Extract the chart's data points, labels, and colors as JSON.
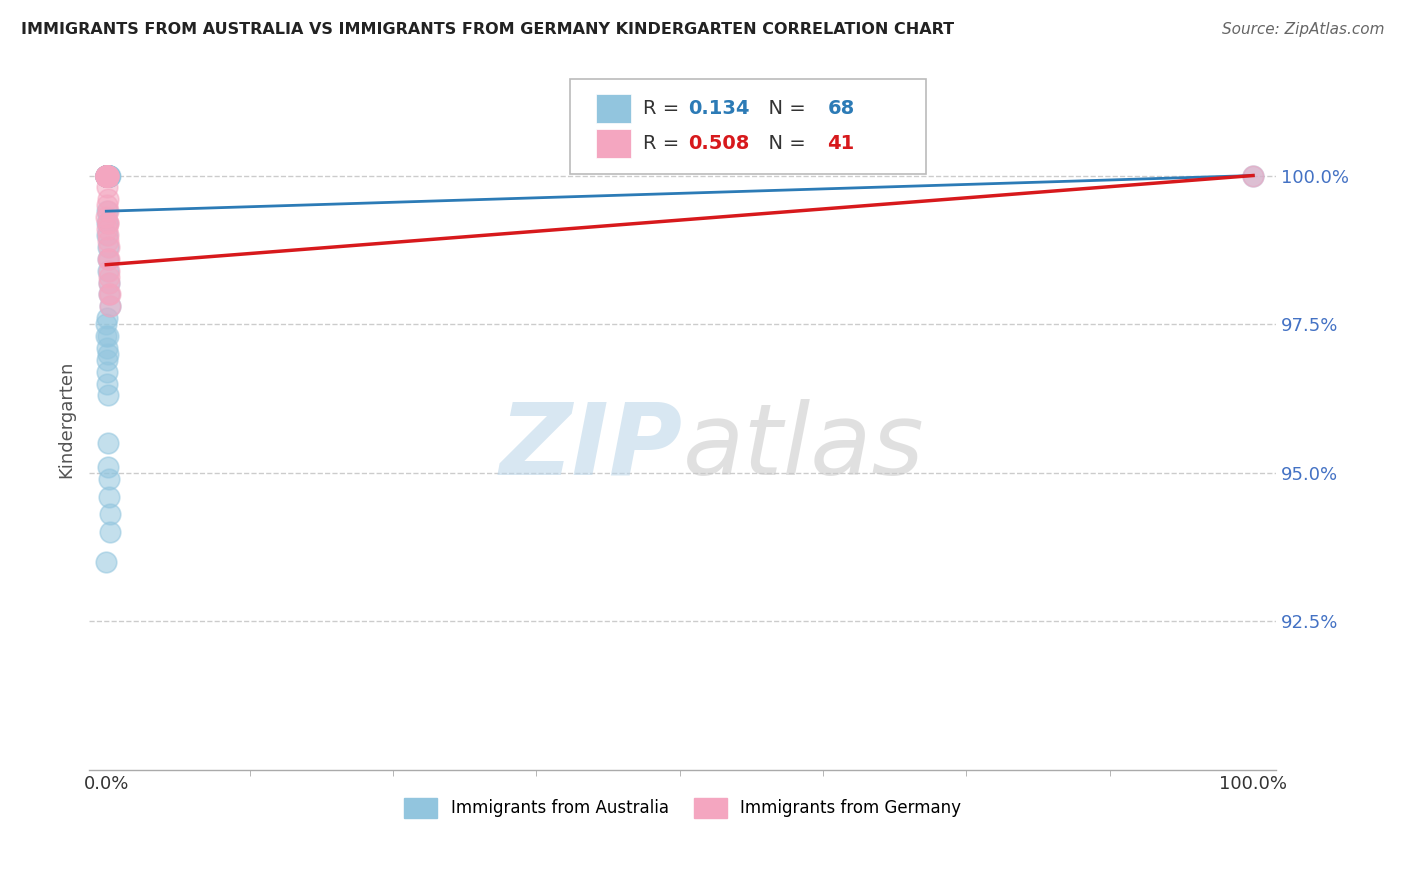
{
  "title": "IMMIGRANTS FROM AUSTRALIA VS IMMIGRANTS FROM GERMANY KINDERGARTEN CORRELATION CHART",
  "source": "Source: ZipAtlas.com",
  "ylabel": "Kindergarten",
  "watermark_zip": "ZIP",
  "watermark_atlas": "atlas",
  "xlim": [
    -1.5,
    102
  ],
  "ylim": [
    90.0,
    101.8
  ],
  "yticks": [
    92.5,
    95.0,
    97.5,
    100.0
  ],
  "ytick_labels": [
    "92.5%",
    "95.0%",
    "97.5%",
    "100.0%"
  ],
  "xtick_labels": [
    "0.0%",
    "100.0%"
  ],
  "legend_R_australia": "0.134",
  "legend_N_australia": "68",
  "legend_R_germany": "0.508",
  "legend_N_germany": "41",
  "blue_color": "#92c5de",
  "pink_color": "#f4a6c0",
  "blue_line_color": "#2c7bb6",
  "pink_line_color": "#d7191c",
  "background_color": "#ffffff",
  "grid_color": "#cccccc",
  "aus_x": [
    0.0,
    0.0,
    0.0,
    0.0,
    0.0,
    0.02,
    0.02,
    0.03,
    0.03,
    0.04,
    0.04,
    0.05,
    0.05,
    0.05,
    0.06,
    0.06,
    0.07,
    0.07,
    0.08,
    0.08,
    0.09,
    0.1,
    0.1,
    0.11,
    0.12,
    0.12,
    0.13,
    0.14,
    0.15,
    0.16,
    0.17,
    0.18,
    0.19,
    0.2,
    0.21,
    0.22,
    0.23,
    0.25,
    0.27,
    0.28,
    0.3,
    0.05,
    0.08,
    0.1,
    0.13,
    0.15,
    0.18,
    0.2,
    0.25,
    0.3,
    0.0,
    0.02,
    0.04,
    0.06,
    0.08,
    0.1,
    0.12,
    0.15,
    0.18,
    0.22,
    0.26,
    0.3,
    0.35,
    0.06,
    0.12,
    0.18,
    100.0,
    0.0
  ],
  "aus_y": [
    100.0,
    100.0,
    100.0,
    100.0,
    100.0,
    100.0,
    100.0,
    100.0,
    100.0,
    100.0,
    100.0,
    100.0,
    100.0,
    100.0,
    100.0,
    100.0,
    100.0,
    100.0,
    100.0,
    100.0,
    100.0,
    100.0,
    100.0,
    100.0,
    100.0,
    100.0,
    100.0,
    100.0,
    100.0,
    100.0,
    100.0,
    100.0,
    100.0,
    100.0,
    100.0,
    100.0,
    100.0,
    100.0,
    100.0,
    100.0,
    100.0,
    99.4,
    99.2,
    99.0,
    98.8,
    98.6,
    98.4,
    98.2,
    98.0,
    97.8,
    97.5,
    97.3,
    97.1,
    96.9,
    96.7,
    96.5,
    96.3,
    95.5,
    95.1,
    94.9,
    94.6,
    94.3,
    94.0,
    97.6,
    97.3,
    97.0,
    100.0,
    93.5
  ],
  "ger_x": [
    0.0,
    0.0,
    0.0,
    0.0,
    0.02,
    0.02,
    0.03,
    0.04,
    0.05,
    0.05,
    0.06,
    0.07,
    0.08,
    0.08,
    0.09,
    0.1,
    0.1,
    0.11,
    0.12,
    0.13,
    0.14,
    0.15,
    0.16,
    0.17,
    0.18,
    0.2,
    0.22,
    0.25,
    0.28,
    0.3,
    0.35,
    0.04,
    0.07,
    0.11,
    0.14,
    0.18,
    0.22,
    0.28,
    0.0,
    0.06,
    100.0
  ],
  "ger_y": [
    100.0,
    100.0,
    100.0,
    100.0,
    100.0,
    100.0,
    100.0,
    100.0,
    100.0,
    100.0,
    100.0,
    100.0,
    100.0,
    100.0,
    100.0,
    100.0,
    100.0,
    100.0,
    100.0,
    100.0,
    100.0,
    99.6,
    99.4,
    99.2,
    99.0,
    98.8,
    98.6,
    98.4,
    98.2,
    98.0,
    97.8,
    99.8,
    99.5,
    99.2,
    98.9,
    98.6,
    98.3,
    98.0,
    99.3,
    99.1,
    100.0
  ]
}
